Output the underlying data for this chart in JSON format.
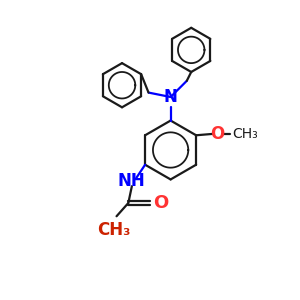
{
  "bg_color": "#ffffff",
  "bond_color": "#1a1a1a",
  "N_color": "#0000ff",
  "O_color": "#ff3333",
  "CH3_color": "#cc2200",
  "bond_lw": 1.6,
  "font_size_atom": 11,
  "font_size_small": 9,
  "figsize": [
    3.0,
    3.0
  ],
  "dpi": 100,
  "xlim": [
    0,
    10
  ],
  "ylim": [
    0,
    10
  ]
}
